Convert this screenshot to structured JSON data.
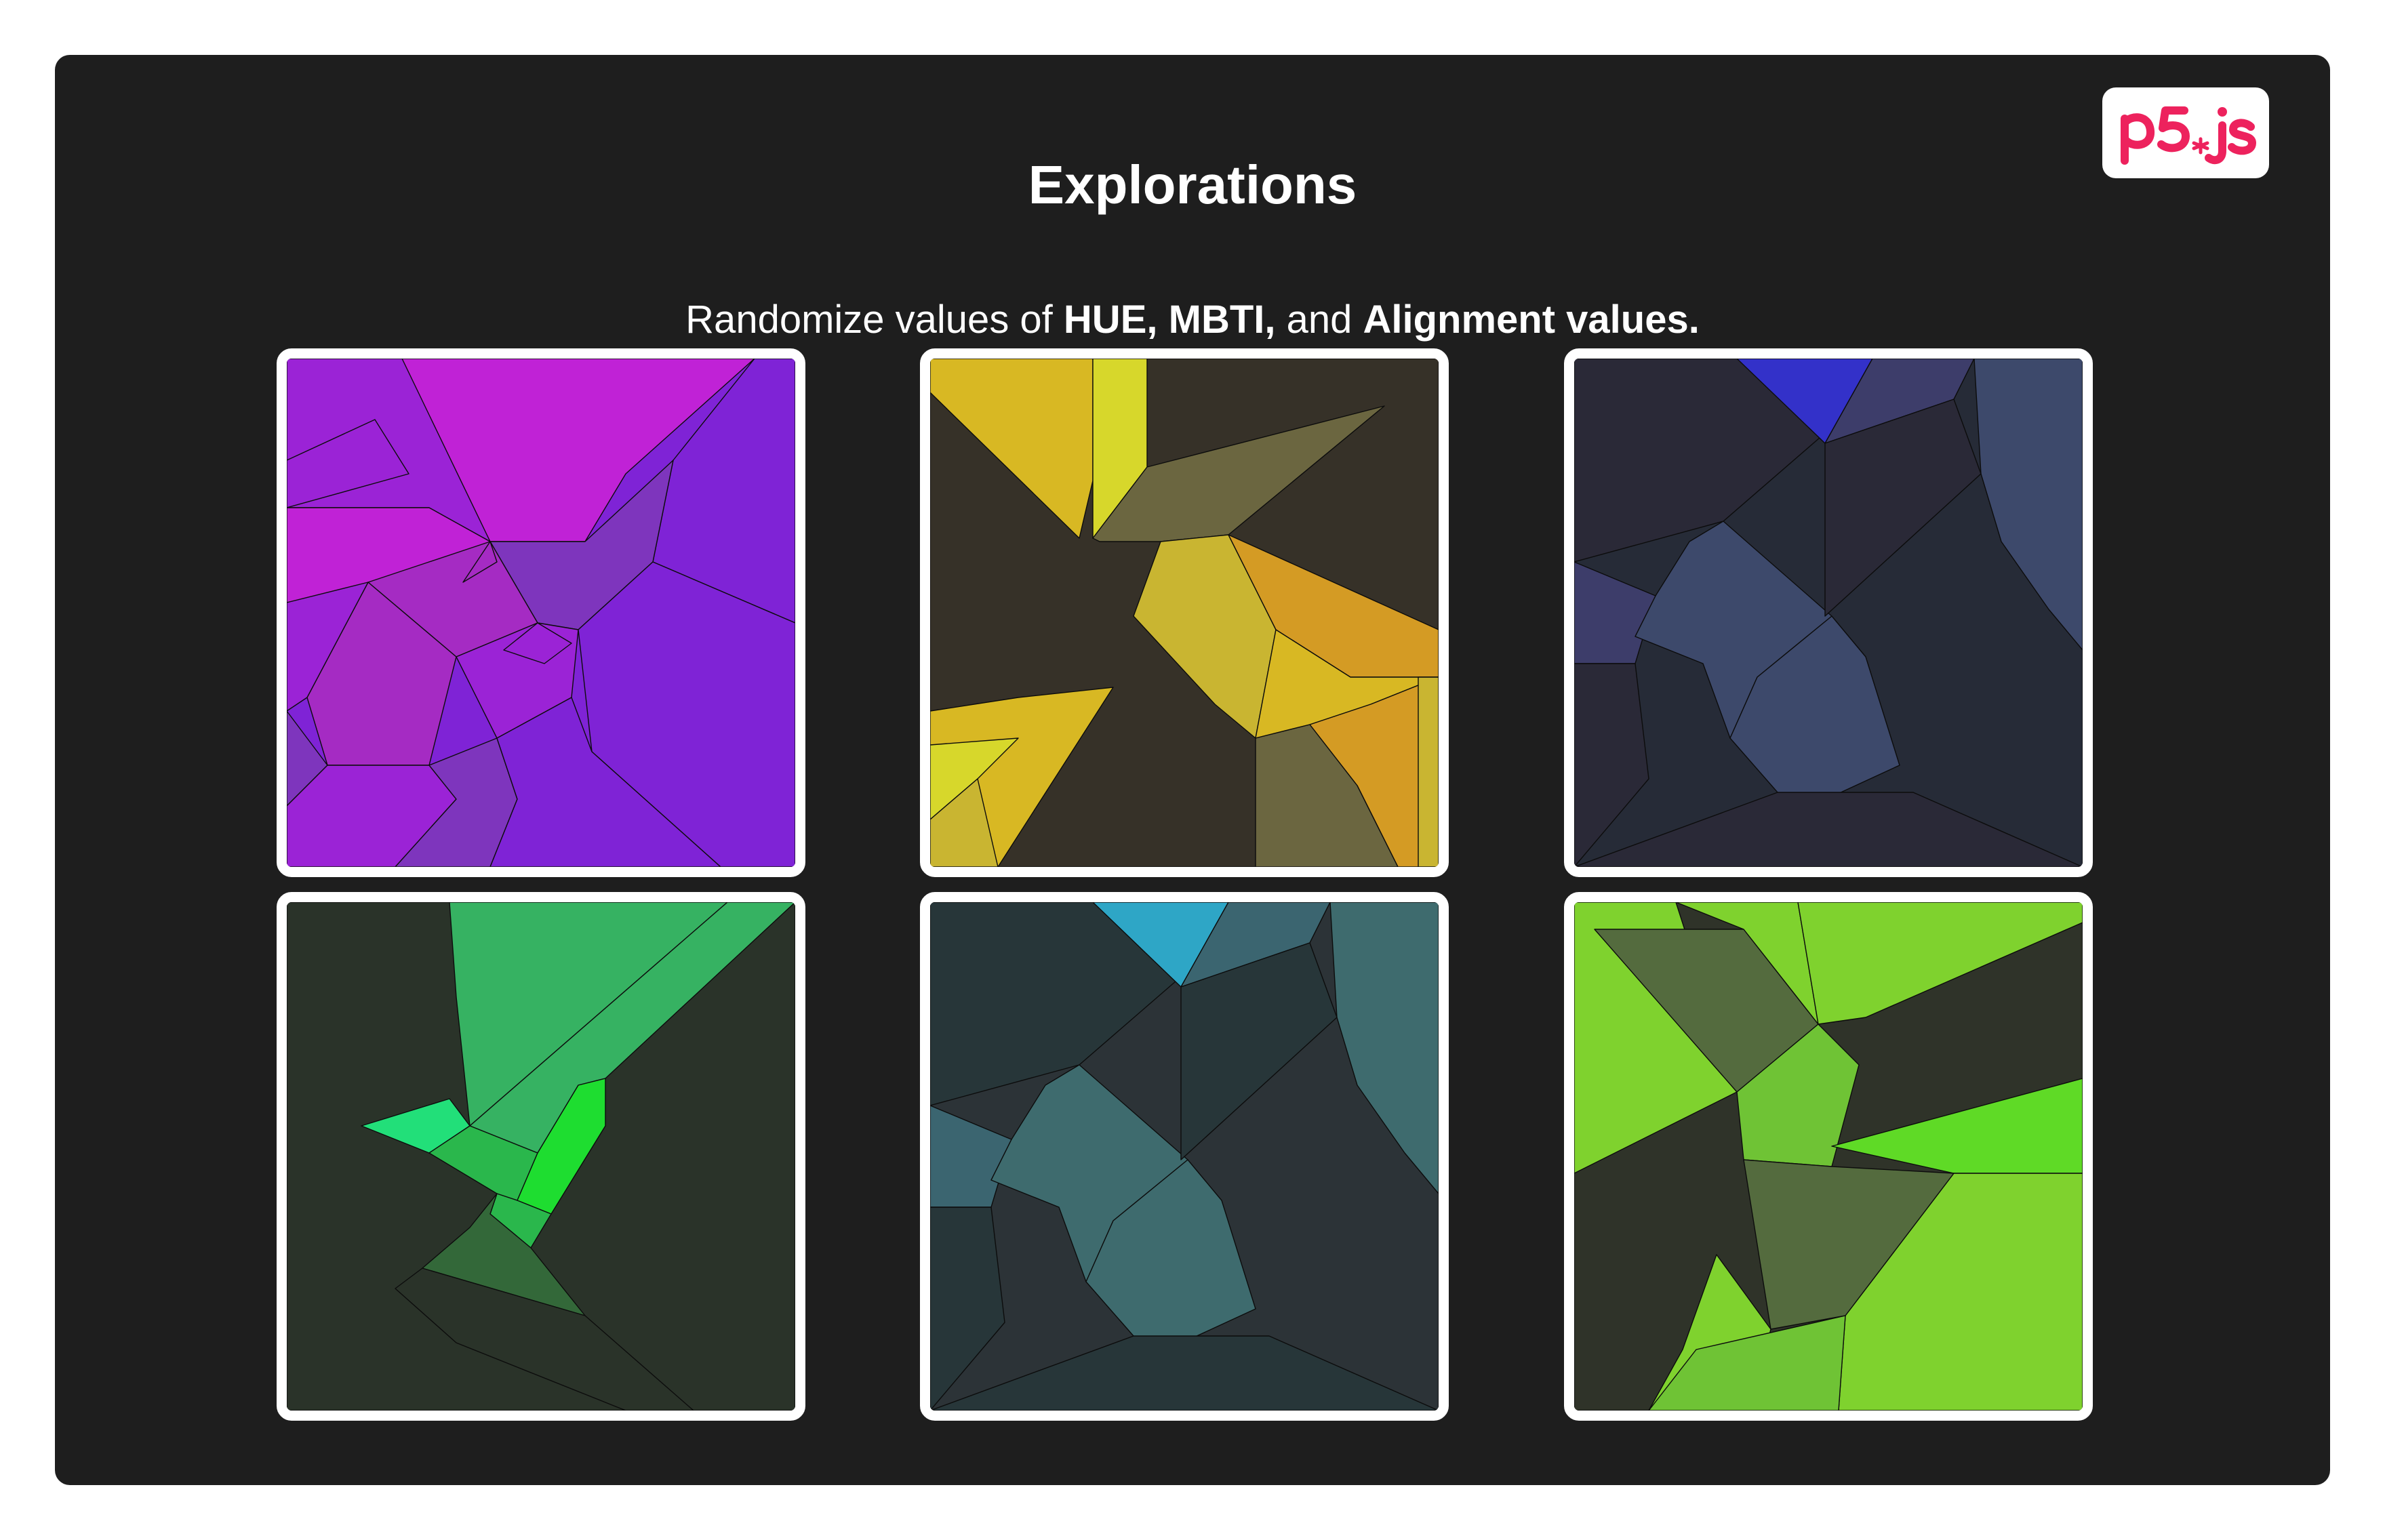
{
  "page": {
    "title": "Explorations",
    "subtitle": {
      "prefix": "Randomize values of ",
      "term1": "HUE,",
      "term2": "MBTI,",
      "middle": " and ",
      "term3": "Alignment values."
    },
    "logo": "p5.js",
    "accent_color": "#ed225d",
    "background_color": "#1e1e1e"
  },
  "explorations": [
    {
      "palette": [
        "#c022d6",
        "#9b23d6",
        "#7f23d6",
        "#a52bc3",
        "#7e35bd"
      ]
    },
    {
      "palette": [
        "#d8b823",
        "#363128",
        "#6b6640",
        "#c9b531",
        "#d49b24"
      ]
    },
    {
      "palette": [
        "#2a2937",
        "#262b37",
        "#3d496b",
        "#3331c9",
        "#3d3d6a"
      ]
    },
    {
      "palette": [
        "#2a3329",
        "#36b262",
        "#22df79",
        "#1edd30",
        "#336839"
      ]
    },
    {
      "palette": [
        "#273639",
        "#2c3337",
        "#3e6b6e",
        "#2ea6c6",
        "#3b6570"
      ]
    },
    {
      "palette": [
        "#7fd22e",
        "#2f3329",
        "#546b3e",
        "#6fc335",
        "#5fda26"
      ]
    }
  ]
}
